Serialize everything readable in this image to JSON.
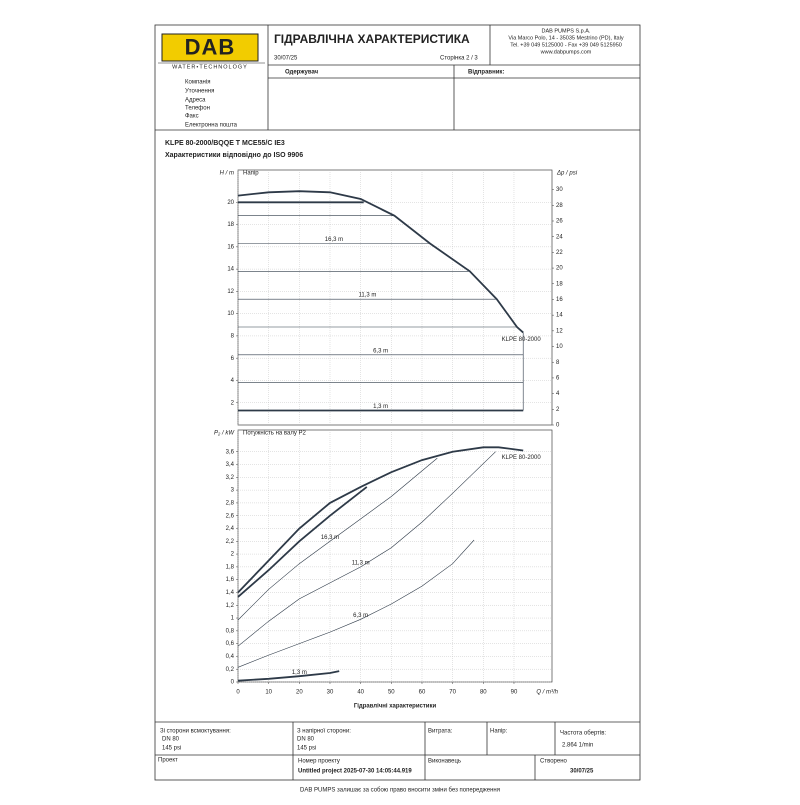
{
  "header": {
    "logo": "DAB",
    "logo_tagline": "WATER•TECHNOLOGY",
    "title": "ГІДРАВЛІЧНА ХАРАКТЕРИСТИКА",
    "company": [
      "DAB PUMPS S.p.A.",
      "Via Marco Polo, 14 - 35035 Mestrino (PD), Italy",
      "Tel. +39 049 5125000 - Fax +39 049 5125950",
      "www.dabpumps.com"
    ],
    "date": "30/07/25",
    "page": "Сторінка 2 / 3"
  },
  "recipient": {
    "receiver": "Одержувач",
    "sender": "Відправник:",
    "fields": [
      "Компанія",
      "Уточнення",
      "Адреса",
      "Телефон",
      "Факс",
      "Електронна пошта"
    ]
  },
  "product": {
    "name": "KLPE 80-2000/BQQE T MCE55/C IE3",
    "subtitle": "Характеристики відповідно до ISO 9906"
  },
  "chart_data": [
    {
      "type": "line",
      "title": "Напір",
      "y_label": "H / m",
      "y2_label": "Δp / psi",
      "curve_label": "KLPE 80-2000",
      "xlim": [
        0,
        102.4
      ],
      "xticks": [
        0,
        10,
        20,
        30,
        40,
        50,
        60,
        70,
        80,
        90
      ],
      "ylim": [
        0,
        22.9
      ],
      "yticks": [
        2,
        4,
        6,
        8,
        10,
        12,
        14,
        16,
        18,
        20
      ],
      "y2lim": [
        0,
        32.5
      ],
      "y2ticks": [
        0,
        2,
        4,
        6,
        8,
        10,
        12,
        14,
        16,
        18,
        20,
        22,
        24,
        26,
        28,
        30
      ],
      "grid": true,
      "color": "#2e3a48",
      "series": [
        {
          "x": [
            0,
            10,
            20,
            30,
            40,
            51,
            62.6,
            75.6,
            84.4,
            91,
            93
          ],
          "values": [
            20.6,
            20.9,
            21,
            20.9,
            20.3,
            18.8,
            16.3,
            13.8,
            11.3,
            8.8,
            8.3
          ],
          "bold": true
        },
        {
          "x": [
            0,
            41
          ],
          "values": [
            20,
            20
          ],
          "bold": true
        },
        {
          "x": [
            0,
            51
          ],
          "values": [
            18.8,
            18.8
          ]
        },
        {
          "x": [
            0,
            62.6
          ],
          "values": [
            16.3,
            16.3
          ],
          "label": "16,3 m"
        },
        {
          "x": [
            0,
            75.6
          ],
          "values": [
            13.8,
            13.8
          ]
        },
        {
          "x": [
            0,
            84.4
          ],
          "values": [
            11.3,
            11.3
          ],
          "label": "11,3 m"
        },
        {
          "x": [
            0,
            91
          ],
          "values": [
            8.8,
            8.8
          ]
        },
        {
          "x": [
            0,
            93
          ],
          "values": [
            6.3,
            6.3
          ],
          "label": "6,3 m"
        },
        {
          "x": [
            0,
            93
          ],
          "values": [
            3.8,
            3.8
          ]
        },
        {
          "x": [
            0,
            93
          ],
          "values": [
            1.3,
            1.3
          ],
          "bold": true,
          "label": "1,3 m"
        },
        {
          "x": [
            93,
            93
          ],
          "values": [
            8.3,
            1.3
          ]
        }
      ]
    },
    {
      "type": "line",
      "title": "Потужність на валу  P2",
      "y_label": "P₂ / kW",
      "x_label": "Q / m³/h",
      "caption": "Гідравлічні характеристики",
      "curve_label": "KLPE 80-2000",
      "xlim": [
        0,
        102.4
      ],
      "xticks": [
        0,
        10,
        20,
        30,
        40,
        50,
        60,
        70,
        80,
        90
      ],
      "ylim": [
        0,
        3.94
      ],
      "yticks": [
        0,
        {
          "value": 0.2,
          "label": "0,2"
        },
        {
          "value": 0.4,
          "label": "0,4"
        },
        {
          "value": 0.6,
          "label": "0,6"
        },
        {
          "value": 0.8,
          "label": "0,8"
        },
        1,
        {
          "value": 1.2,
          "label": "1,2"
        },
        {
          "value": 1.4,
          "label": "1,4"
        },
        {
          "value": 1.6,
          "label": "1,6"
        },
        {
          "value": 1.8,
          "label": "1,8"
        },
        2,
        {
          "value": 2.2,
          "label": "2,2"
        },
        {
          "value": 2.4,
          "label": "2,4"
        },
        {
          "value": 2.6,
          "label": "2,6"
        },
        {
          "value": 2.8,
          "label": "2,8"
        },
        3,
        {
          "value": 3.2,
          "label": "3,2"
        },
        {
          "value": 3.4,
          "label": "3,4"
        },
        {
          "value": 3.6,
          "label": "3,6"
        }
      ],
      "grid": true,
      "color": "#2e3a48",
      "series": [
        {
          "x": [
            0,
            10,
            20,
            30,
            40,
            50,
            60,
            70,
            80,
            85,
            93
          ],
          "values": [
            1.4,
            1.9,
            2.4,
            2.8,
            3.05,
            3.28,
            3.47,
            3.6,
            3.67,
            3.67,
            3.62
          ],
          "bold": true
        },
        {
          "x": [
            0,
            10,
            20,
            30,
            42
          ],
          "values": [
            1.33,
            1.75,
            2.2,
            2.6,
            3.05
          ],
          "bold": true
        },
        {
          "x": [
            0,
            10,
            20,
            30,
            40,
            50,
            60,
            65
          ],
          "values": [
            0.97,
            1.45,
            1.85,
            2.2,
            2.55,
            2.9,
            3.3,
            3.5
          ],
          "label": "16,3 m"
        },
        {
          "x": [
            0,
            10,
            20,
            30,
            40,
            50,
            60,
            70,
            84
          ],
          "values": [
            0.56,
            0.95,
            1.3,
            1.55,
            1.8,
            2.1,
            2.5,
            2.95,
            3.6
          ],
          "label": "11,3 m"
        },
        {
          "x": [
            0,
            10,
            20,
            30,
            40,
            50,
            60,
            70,
            77
          ],
          "values": [
            0.23,
            0.42,
            0.6,
            0.78,
            0.98,
            1.22,
            1.5,
            1.85,
            2.22
          ],
          "label": "6,3 m"
        },
        {
          "x": [
            0,
            10,
            20,
            30,
            33
          ],
          "values": [
            0.02,
            0.05,
            0.09,
            0.14,
            0.17
          ],
          "bold": true,
          "label": "1,3 m"
        }
      ]
    }
  ],
  "footer": {
    "suction": [
      "Зі сторони всмоктування:",
      "DN 80",
      "145 psi"
    ],
    "discharge": [
      "З напірної сторони:",
      "DN 80",
      "145 psi"
    ],
    "flow": "Витрата:",
    "head": "Напір:",
    "speed": [
      "Частота обертів:",
      "2.864 1/min"
    ],
    "project": "Проект",
    "project_number": [
      "Номер проекту",
      "Untitled project 2025-07-30 14:05:44.919"
    ],
    "author": "Виконавець",
    "created": [
      "Створено",
      "30/07/25"
    ],
    "disclaimer": "DAB PUMPS залишає за собою право вносити зміни без попередження"
  }
}
